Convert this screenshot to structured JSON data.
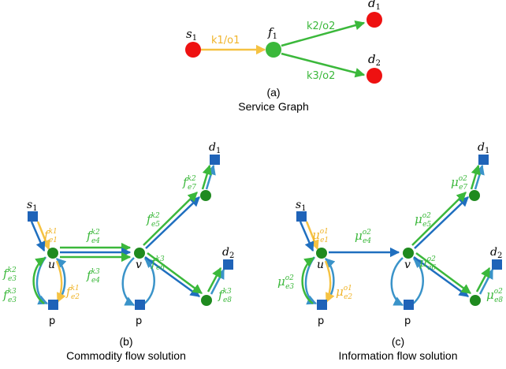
{
  "panel_a": {
    "tag": "(a)",
    "title": "Service Graph",
    "nodes": {
      "s1": "s",
      "s1_sub": "1",
      "f1": "f",
      "f1_sub": "1",
      "d1": "d",
      "d1_sub": "1",
      "d2": "d",
      "d2_sub": "2"
    },
    "edges": {
      "e1": "k1/o1",
      "e2": "k2/o2",
      "e3": "k3/o2"
    }
  },
  "panel_b": {
    "tag": "(b)",
    "title": "Commodity flow solution",
    "nodes": {
      "s1": "s",
      "s1_sub": "1",
      "u": "u",
      "v": "v",
      "p1": "p",
      "p2": "p",
      "d1": "d",
      "d1_sub": "1",
      "d2": "d",
      "d2_sub": "2"
    },
    "labels": [
      {
        "id": "e1",
        "sym": "f",
        "sup": "k1",
        "sub": "e1"
      },
      {
        "id": "e2",
        "sym": "f",
        "sup": "k1",
        "sub": "e2"
      },
      {
        "id": "e3a",
        "sym": "f",
        "sup": "k2",
        "sub": "e3"
      },
      {
        "id": "e3b",
        "sym": "f",
        "sup": "k3",
        "sub": "e3"
      },
      {
        "id": "e4a",
        "sym": "f",
        "sup": "k2",
        "sub": "e4"
      },
      {
        "id": "e4b",
        "sym": "f",
        "sup": "k3",
        "sub": "e4"
      },
      {
        "id": "e5",
        "sym": "f",
        "sup": "k2",
        "sub": "e5"
      },
      {
        "id": "e6",
        "sym": "f",
        "sup": "k3",
        "sub": "e6"
      },
      {
        "id": "e7",
        "sym": "f",
        "sup": "k2",
        "sub": "e7"
      },
      {
        "id": "e8",
        "sym": "f",
        "sup": "k3",
        "sub": "e8"
      }
    ]
  },
  "panel_c": {
    "tag": "(c)",
    "title": "Information flow solution",
    "nodes": {
      "s1": "s",
      "s1_sub": "1",
      "u": "u",
      "v": "v",
      "p1": "p",
      "p2": "p",
      "d1": "d",
      "d1_sub": "1",
      "d2": "d",
      "d2_sub": "2"
    },
    "labels": [
      {
        "id": "e1",
        "sym": "μ",
        "sup": "o1",
        "sub": "e1"
      },
      {
        "id": "e2",
        "sym": "μ",
        "sup": "o1",
        "sub": "e2"
      },
      {
        "id": "e3",
        "sym": "μ",
        "sup": "o2",
        "sub": "e3"
      },
      {
        "id": "e4",
        "sym": "μ",
        "sup": "o2",
        "sub": "e4"
      },
      {
        "id": "e5",
        "sym": "μ",
        "sup": "o2",
        "sub": "e5"
      },
      {
        "id": "e6",
        "sym": "μ",
        "sup": "o2",
        "sub": "e6"
      },
      {
        "id": "e7",
        "sym": "μ",
        "sup": "o2",
        "sub": "e7"
      },
      {
        "id": "e8",
        "sym": "μ",
        "sup": "o2",
        "sub": "e8"
      }
    ]
  },
  "colors": {
    "red_node": "#ee1111",
    "green_node": "#2a9a2a",
    "green_edge": "#3bb83b",
    "yellow_edge": "#f5c242",
    "blue_edge": "#1f6fbf",
    "blue_loop": "#3a93c9",
    "blue_square": "#1f63b8",
    "green_text": "#3bb83b",
    "yellow_text": "#f0b429"
  }
}
